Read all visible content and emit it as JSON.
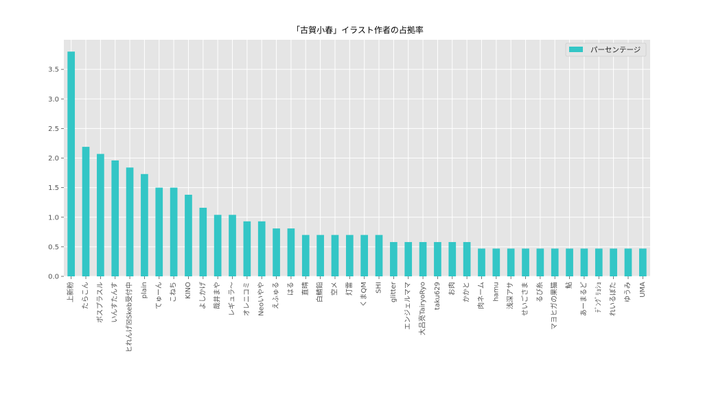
{
  "chart_data": {
    "type": "bar",
    "title": "「古賀小春」イラスト作者の占拠率",
    "xlabel": "",
    "ylabel": "",
    "ylim": [
      0,
      4.0
    ],
    "yticks": [
      0.0,
      0.5,
      1.0,
      1.5,
      2.0,
      2.5,
      3.0,
      3.5
    ],
    "ytick_labels": [
      "0.0",
      "0.5",
      "1.0",
      "1.5",
      "2.0",
      "2.5",
      "3.0",
      "3.5"
    ],
    "grid": true,
    "legend_position": "top-right",
    "colors": {
      "bar": "#33c6c6",
      "plot_bg": "#e5e5e5",
      "grid": "#ffffff"
    },
    "categories": [
      "上新粉",
      "たらこん",
      "ボスプラスル",
      "いんすたんす",
      "ヒれんげ☒Skeb受付中",
      "plain",
      "てゅーん",
      "こねち",
      "KINO",
      "よしかげ",
      "哉井まや",
      "レギュラ～",
      "オレニコミ",
      "Neoいやや",
      "えふゅる",
      "はる",
      "直晴",
      "白鯖鉛",
      "空メ",
      "灯雷",
      "くまQM",
      "SHI",
      "glitter",
      "エンジェルママ",
      "大吕亮TairyoRyo",
      "taku629",
      "お肉",
      "かかと",
      "肉ネーム",
      "hamu",
      "浅深アサ",
      "せいごさま",
      "るび糸",
      "マヨヒガの果猫",
      "鮎",
      "あーまるど",
      "ﾃﾞﾝｸﾞﾘｮｼｮ",
      "れいるぼた",
      "ゆうみ",
      "UMA"
    ],
    "series": [
      {
        "name": "パーセンテージ",
        "values": [
          3.8,
          2.19,
          2.07,
          1.96,
          1.84,
          1.73,
          1.5,
          1.5,
          1.38,
          1.16,
          1.04,
          1.04,
          0.93,
          0.93,
          0.81,
          0.81,
          0.7,
          0.7,
          0.7,
          0.7,
          0.7,
          0.7,
          0.58,
          0.58,
          0.58,
          0.58,
          0.58,
          0.58,
          0.47,
          0.47,
          0.47,
          0.47,
          0.47,
          0.47,
          0.47,
          0.47,
          0.47,
          0.47,
          0.47,
          0.47
        ]
      }
    ]
  }
}
